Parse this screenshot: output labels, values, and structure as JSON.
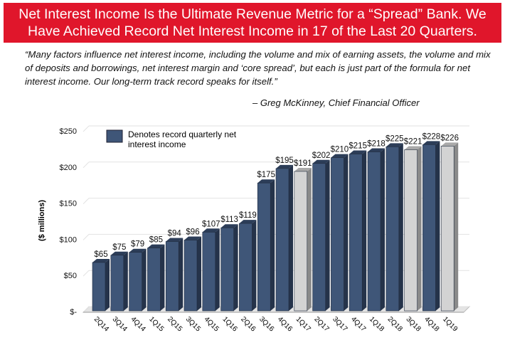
{
  "header": {
    "title": "Net Interest Income Is the Ultimate Revenue Metric for a “Spread” Bank. We Have Achieved Record Net Interest Income in 17 of the Last 20 Quarters."
  },
  "quote": {
    "text": "“Many factors influence net interest income, including the volume and mix of earning assets, the volume and mix of deposits and borrowings, net interest margin and ‘core spread’, but each is just part of the formula for net interest income.  Our long-term track record speaks for itself.”",
    "author": "– Greg McKinney, Chief Financial Officer"
  },
  "chart_data": {
    "type": "bar",
    "ylabel": "($ millions)",
    "ylim": [
      0,
      250
    ],
    "yticks": [
      0,
      50,
      100,
      150,
      200,
      250
    ],
    "ytick_labels": [
      "$-",
      "$50",
      "$100",
      "$150",
      "$200",
      "$250"
    ],
    "grid": true,
    "legend": {
      "label": "Denotes record quarterly net interest income",
      "placement": "top-left",
      "color": "#3f5678"
    },
    "categories": [
      "2Q14",
      "3Q14",
      "4Q14",
      "1Q15",
      "2Q15",
      "3Q15",
      "4Q15",
      "1Q16",
      "2Q16",
      "3Q16",
      "4Q16",
      "1Q17",
      "2Q17",
      "3Q17",
      "4Q17",
      "1Q18",
      "2Q18",
      "3Q18",
      "4Q18",
      "1Q19"
    ],
    "values": [
      65,
      75,
      79,
      85,
      94,
      96,
      107,
      113,
      119,
      175,
      195,
      191,
      202,
      210,
      215,
      218,
      225,
      221,
      228,
      226
    ],
    "data_labels": [
      "$65",
      "$75",
      "$79",
      "$85",
      "$94",
      "$96",
      "$107",
      "$113",
      "$119",
      "$175",
      "$195",
      "$191",
      "$202",
      "$210",
      "$215",
      "$218",
      "$225",
      "$221",
      "$228",
      "$226"
    ],
    "record": [
      true,
      true,
      true,
      true,
      true,
      true,
      true,
      true,
      true,
      true,
      true,
      false,
      true,
      true,
      true,
      true,
      true,
      false,
      true,
      false
    ],
    "colors": {
      "record": "#3f5678",
      "non_record": "#d3d3d3"
    }
  }
}
